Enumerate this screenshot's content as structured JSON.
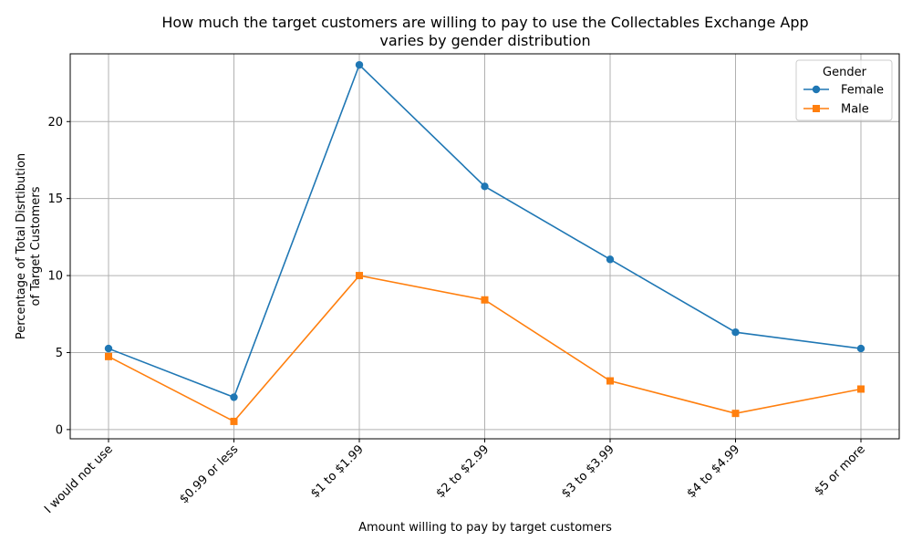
{
  "chart_data": {
    "type": "line",
    "title_lines": [
      "How much the target customers are willing to pay to use the Collectables Exchange App",
      "varies by gender distribution"
    ],
    "xlabel": "Amount willing to pay by target customers",
    "ylabel_lines": [
      "Percentage of Total Disrtibution",
      "of Target Customers"
    ],
    "categories": [
      "I would not use",
      "$0.99 or less",
      "$1 to $1.99",
      "$2 to $2.99",
      "$3 to $3.99",
      "$4 to $4.99",
      "$5 or more"
    ],
    "series": [
      {
        "name": "Female",
        "color": "#1f77b4",
        "marker": "circle",
        "values": [
          5.26,
          2.1,
          23.68,
          15.79,
          11.05,
          6.32,
          5.26
        ]
      },
      {
        "name": "Male",
        "color": "#ff7f0e",
        "marker": "square",
        "values": [
          4.74,
          0.53,
          10.0,
          8.42,
          3.16,
          1.05,
          2.63
        ]
      }
    ],
    "ylim": [
      -0.6,
      24.4
    ],
    "yticks": [
      0,
      5,
      10,
      15,
      20
    ],
    "grid": true,
    "legend": {
      "title": "Gender",
      "position": "top-right"
    }
  }
}
